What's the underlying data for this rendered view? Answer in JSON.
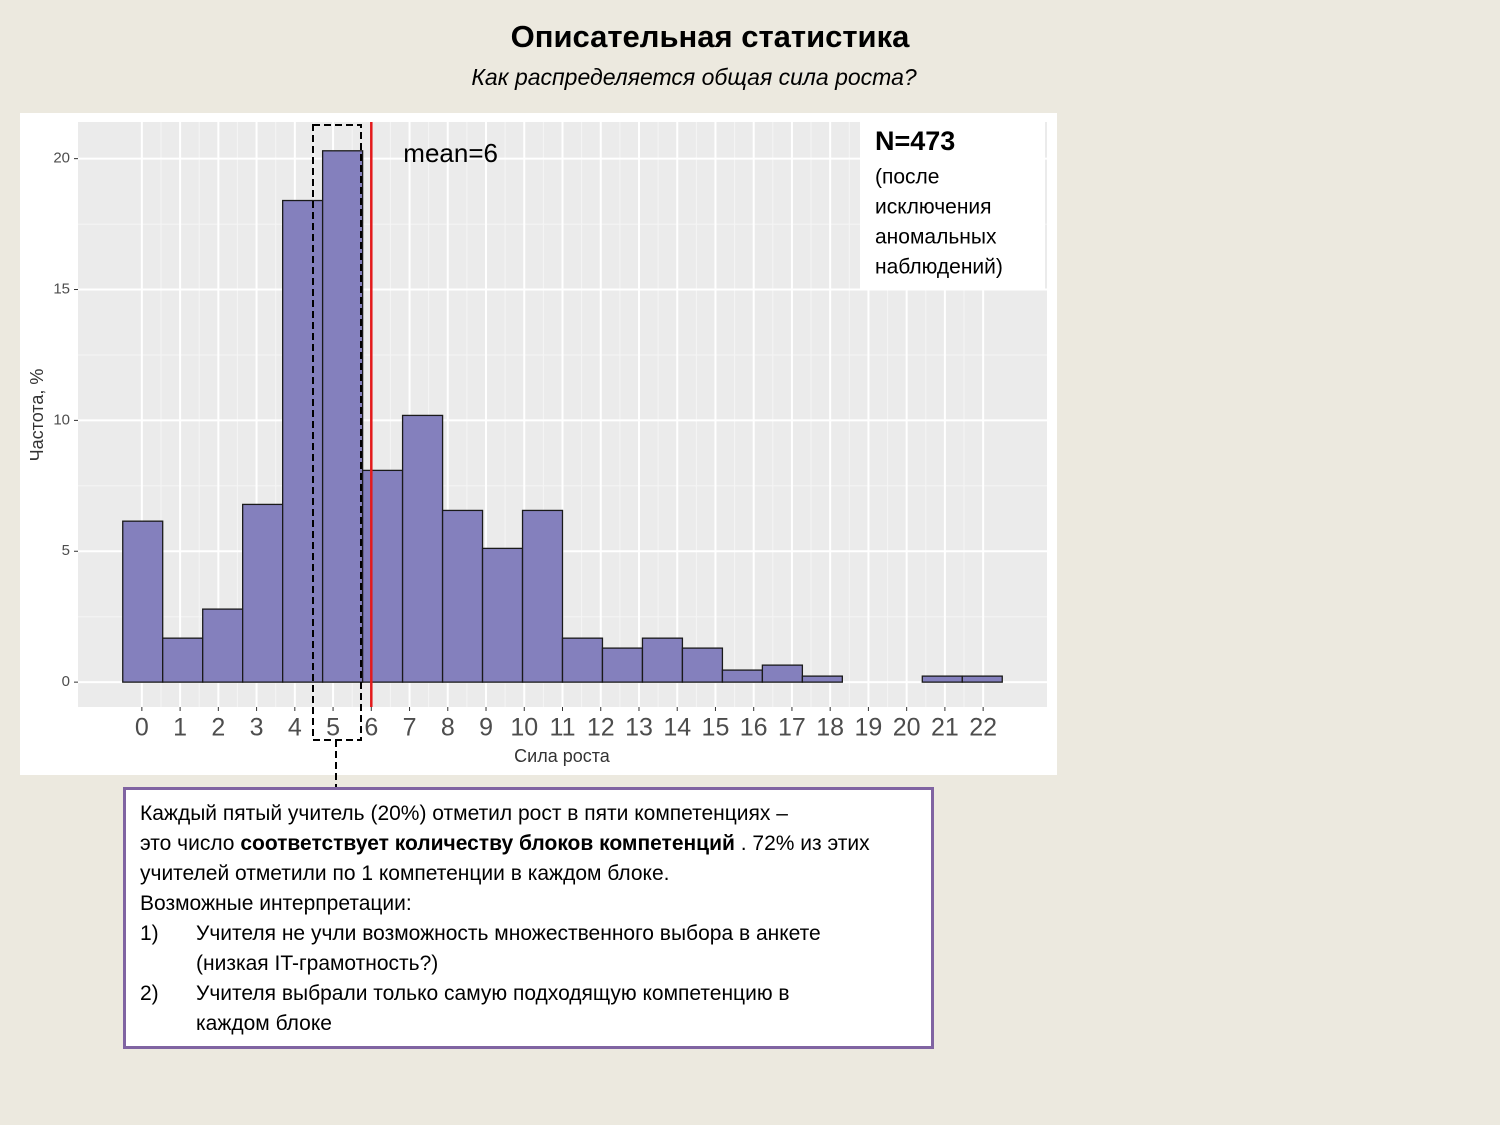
{
  "chart_data": {
    "type": "histogram",
    "title": "Описательная статистика",
    "subtitle": "Как распределяется общая сила роста?",
    "xlabel": "Сила роста",
    "ylabel": "Частота, %",
    "bins": [
      -0.5,
      0.545,
      1.591,
      2.636,
      3.682,
      4.727,
      5.773,
      6.818,
      7.864,
      8.909,
      9.955,
      11,
      12.045,
      13.091,
      14.136,
      15.182,
      16.227,
      17.273,
      18.318,
      19.364,
      20.409,
      21.455,
      22.5
    ],
    "values": [
      6.15,
      1.68,
      2.79,
      6.79,
      18.4,
      20.3,
      8.09,
      10.19,
      6.56,
      5.11,
      6.56,
      1.68,
      1.3,
      1.68,
      1.3,
      0.46,
      0.65,
      0.23,
      0,
      0,
      0.23,
      0.23
    ],
    "color": "#8480bd",
    "xlim": [
      -1.67,
      23.67
    ],
    "ylim": [
      -0.95,
      21.4
    ],
    "xticks": [
      0,
      1,
      2,
      3,
      4,
      5,
      6,
      7,
      8,
      9,
      10,
      11,
      12,
      13,
      14,
      15,
      16,
      17,
      18,
      19,
      20,
      21,
      22
    ],
    "yticks": [
      0,
      5,
      10,
      15,
      20
    ],
    "grid": true,
    "mean_line": {
      "value": 6,
      "label": "mean=6",
      "color": "#e31a1c"
    },
    "note": {
      "title": "N=473",
      "lines": [
        "(после",
        "исключения",
        "аномальных",
        "наблюдений)"
      ]
    }
  },
  "comment": {
    "line1": "Каждый пятый учитель (20%) отметил рост в пяти компетенциях –",
    "line2_start": "это число ",
    "line2_bold": "соответствует количеству блоков компетенций",
    "line2_end": " . 72% из этих",
    "line3": "учителей отметили по 1 компетенции в каждом блоке.",
    "heading": "Возможные интерпретации:",
    "items": [
      {
        "number": "1)",
        "lines": [
          "Учителя не учли возможность множественного выбора в анкете",
          "(низкая IT-грамотность?)"
        ]
      },
      {
        "number": "2)",
        "lines": [
          "Учителя выбрали только самую подходящую компетенцию в",
          "каждом блоке"
        ]
      }
    ]
  }
}
